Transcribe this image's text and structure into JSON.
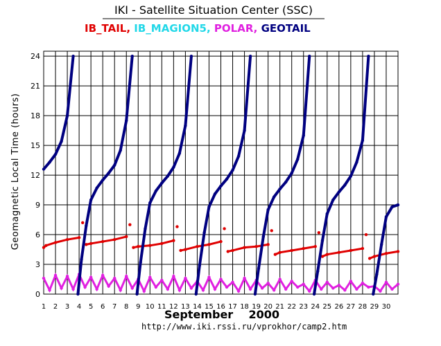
{
  "chart_data": {
    "type": "scatter",
    "title": "IKI - Satellite Situation Center (SSC)",
    "legend": [
      {
        "name": "IB_TAIL",
        "color": "#e00000"
      },
      {
        "name": "IB_MAGION5",
        "color": "#22d8e8"
      },
      {
        "name": "POLAR",
        "color": "#e020e0"
      },
      {
        "name": "GEOTAIL",
        "color": "#000080"
      }
    ],
    "separators": [
      ",",
      ",",
      ","
    ],
    "ylabel": "Geomagnetic Local Time (hours)",
    "xlabel": "September    2000",
    "url": "http://www.iki.rssi.ru/vprokhor/camp2.htm",
    "xlim": [
      1,
      31
    ],
    "ylim": [
      0,
      24.5
    ],
    "y_ticks": [
      0,
      3,
      6,
      9,
      12,
      15,
      18,
      21,
      24
    ],
    "y_tick_labels": [
      "0",
      "3",
      "6",
      "9",
      "12",
      "15",
      "18",
      "21",
      "24"
    ],
    "x_ticks": [
      1,
      2,
      3,
      4,
      5,
      6,
      7,
      8,
      9,
      10,
      11,
      12,
      13,
      14,
      15,
      16,
      17,
      18,
      19,
      20,
      21,
      22,
      23,
      24,
      25,
      26,
      27,
      28,
      29,
      30
    ],
    "x_tick_labels": [
      "1",
      "2",
      "3",
      "4",
      "5",
      "6",
      "7",
      "8",
      "9",
      "10",
      "11",
      "12",
      "13",
      "14",
      "15",
      "16",
      "17",
      "18",
      "19",
      "20",
      "21",
      "22",
      "23",
      "24",
      "25",
      "26",
      "27",
      "28",
      "29",
      "30"
    ],
    "grid": true,
    "series": [
      {
        "name": "IB_TAIL",
        "color": "#e00000",
        "x": [
          1.0,
          1.2,
          2.0,
          3.0,
          4.0,
          4.3,
          4.6,
          5.0,
          6.0,
          7.0,
          8.0,
          8.3,
          8.6,
          9.0,
          10.0,
          11.0,
          12.0,
          12.3,
          12.6,
          13.0,
          14.0,
          15.0,
          16.0,
          16.3,
          16.6,
          17.0,
          18.0,
          19.0,
          20.0,
          20.3,
          20.6,
          21.0,
          22.0,
          23.0,
          24.0,
          24.3,
          24.6,
          25.0,
          26.0,
          27.0,
          28.0,
          28.3,
          28.6,
          29.0,
          30.0,
          31.0
        ],
        "y": [
          4.7,
          4.9,
          5.2,
          5.5,
          5.7,
          7.2,
          5.0,
          5.1,
          5.3,
          5.5,
          5.8,
          7.0,
          4.7,
          4.8,
          4.9,
          5.1,
          5.4,
          6.8,
          4.4,
          4.5,
          4.8,
          5.0,
          5.3,
          6.6,
          4.3,
          4.4,
          4.7,
          4.8,
          5.0,
          6.4,
          4.0,
          4.2,
          4.4,
          4.6,
          4.8,
          6.2,
          3.8,
          4.0,
          4.2,
          4.4,
          4.6,
          6.0,
          3.6,
          3.8,
          4.1,
          4.3
        ]
      },
      {
        "name": "POLAR",
        "color": "#e020e0",
        "x": [
          1.0,
          1.5,
          2.0,
          2.5,
          3.0,
          3.5,
          4.0,
          4.5,
          5.0,
          5.5,
          6.0,
          6.5,
          7.0,
          7.5,
          8.0,
          8.5,
          9.0,
          9.5,
          10.0,
          10.5,
          11.0,
          11.5,
          12.0,
          12.5,
          13.0,
          13.5,
          14.0,
          14.5,
          15.0,
          15.5,
          16.0,
          16.5,
          17.0,
          17.5,
          18.0,
          18.5,
          19.0,
          19.5,
          20.0,
          20.5,
          21.0,
          21.5,
          22.0,
          22.5,
          23.0,
          23.5,
          24.0,
          24.5,
          25.0,
          25.5,
          26.0,
          26.5,
          27.0,
          27.5,
          28.0,
          28.5,
          29.0,
          29.5,
          30.0,
          30.5,
          31.0
        ],
        "y": [
          1.6,
          0.4,
          1.9,
          0.6,
          1.8,
          0.5,
          2.0,
          0.7,
          1.7,
          0.5,
          1.9,
          0.8,
          1.6,
          0.4,
          1.8,
          0.6,
          1.5,
          0.3,
          1.7,
          0.7,
          1.4,
          0.5,
          1.8,
          0.4,
          1.6,
          0.6,
          1.3,
          0.4,
          1.7,
          0.5,
          1.5,
          0.7,
          1.2,
          0.3,
          1.6,
          0.5,
          1.4,
          0.6,
          1.1,
          0.4,
          1.5,
          0.5,
          1.3,
          0.7,
          1.0,
          0.3,
          1.4,
          0.5,
          1.2,
          0.6,
          0.9,
          0.4,
          1.3,
          0.5,
          1.1,
          0.7,
          0.8,
          0.3,
          1.2,
          0.5,
          1.0
        ]
      },
      {
        "name": "GEOTAIL",
        "color": "#000080",
        "x": [
          1.0,
          1.5,
          2.0,
          2.5,
          3.0,
          3.5,
          3.9,
          4.2,
          4.6,
          5.0,
          5.5,
          6.0,
          6.5,
          7.0,
          7.5,
          8.0,
          8.5,
          8.9,
          9.2,
          9.6,
          10.0,
          10.5,
          11.0,
          11.5,
          12.0,
          12.5,
          13.0,
          13.5,
          13.9,
          14.2,
          14.6,
          15.0,
          15.5,
          16.0,
          16.5,
          17.0,
          17.5,
          18.0,
          18.5,
          18.9,
          19.2,
          19.6,
          20.0,
          20.5,
          21.0,
          21.5,
          22.0,
          22.5,
          23.0,
          23.5,
          23.9,
          24.2,
          24.6,
          25.0,
          25.5,
          26.0,
          26.5,
          27.0,
          27.5,
          28.0,
          28.5,
          28.9,
          29.2,
          29.6,
          30.0,
          30.5,
          31.0
        ],
        "y": [
          12.6,
          13.3,
          14.1,
          15.4,
          18.0,
          24.0,
          0.0,
          3.5,
          6.9,
          9.5,
          10.7,
          11.5,
          12.2,
          13.0,
          14.5,
          17.5,
          24.0,
          0.0,
          3.2,
          6.6,
          9.2,
          10.4,
          11.2,
          11.9,
          12.8,
          14.2,
          17.0,
          24.0,
          0.0,
          2.9,
          6.2,
          8.8,
          10.1,
          10.9,
          11.6,
          12.5,
          13.9,
          16.5,
          24.0,
          0.0,
          2.6,
          5.8,
          8.5,
          9.8,
          10.6,
          11.3,
          12.2,
          13.6,
          16.0,
          24.0,
          0.0,
          2.3,
          5.4,
          8.1,
          9.5,
          10.3,
          11.0,
          11.9,
          13.3,
          15.5,
          24.0,
          0.0,
          2.0,
          5.0,
          7.8,
          8.8,
          9.0
        ]
      }
    ]
  }
}
